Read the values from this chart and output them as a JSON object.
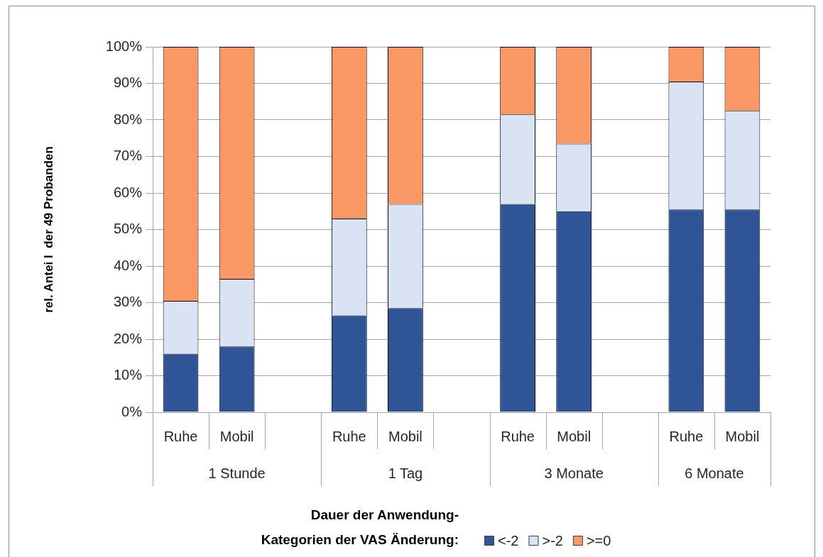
{
  "chart_data": {
    "type": "bar",
    "stacked": true,
    "ylabel": "rel. Antei l  der 49 Probanden",
    "xlabel": "Dauer der Anwendung-",
    "legend_title": "Kategorien der VAS Änderung:",
    "annotations": [
      "1 Stunde",
      "1 Tag",
      "3 Monate",
      "6 Monate"
    ],
    "categories": [
      "Ruhe",
      "Mobil",
      null,
      "Ruhe",
      "Mobil",
      null,
      "Ruhe",
      "Mobil",
      null,
      "Ruhe",
      "Mobil"
    ],
    "series": [
      {
        "name": "<-2",
        "color": "#2f5597",
        "values": [
          16,
          18,
          null,
          26.5,
          28.5,
          null,
          57,
          55,
          null,
          55.5,
          55.5
        ]
      },
      {
        "name": ">-2",
        "color": "#dae3f3",
        "values": [
          14.5,
          18.5,
          null,
          26.5,
          28.5,
          null,
          24.5,
          18.5,
          null,
          35,
          27
        ]
      },
      {
        "name": ">=0",
        "color": "#fb9966",
        "values": [
          69.5,
          63.5,
          null,
          47,
          43,
          null,
          18.5,
          26.5,
          null,
          9.5,
          17.5
        ]
      }
    ],
    "ylim": [
      0,
      100
    ],
    "yticks": [
      {
        "value": 0,
        "label": "0%"
      },
      {
        "value": 10,
        "label": "10%"
      },
      {
        "value": 20,
        "label": "20%"
      },
      {
        "value": 30,
        "label": "30%"
      },
      {
        "value": 40,
        "label": "40%"
      },
      {
        "value": 50,
        "label": "50%"
      },
      {
        "value": 60,
        "label": "60%"
      },
      {
        "value": 70,
        "label": "70%"
      },
      {
        "value": 80,
        "label": "80%"
      },
      {
        "value": 90,
        "label": "90%"
      },
      {
        "value": 100,
        "label": "100%"
      }
    ],
    "grid": "y",
    "legend": "bottom"
  }
}
